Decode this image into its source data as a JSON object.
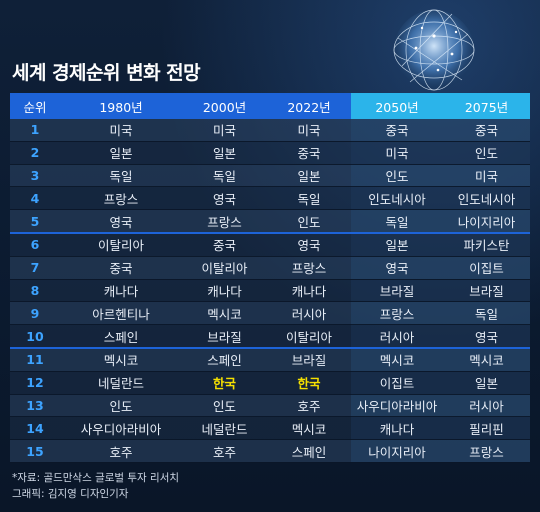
{
  "title": "세계 경제순위 변화 전망",
  "table": {
    "headers": [
      "순위",
      "1980년",
      "2000년",
      "2022년",
      "2050년",
      "2075년"
    ],
    "rows": [
      [
        "1",
        "미국",
        "미국",
        "미국",
        "중국",
        "중국"
      ],
      [
        "2",
        "일본",
        "일본",
        "중국",
        "미국",
        "인도"
      ],
      [
        "3",
        "독일",
        "독일",
        "일본",
        "인도",
        "미국"
      ],
      [
        "4",
        "프랑스",
        "영국",
        "독일",
        "인도네시아",
        "인도네시아"
      ],
      [
        "5",
        "영국",
        "프랑스",
        "인도",
        "독일",
        "나이지리아"
      ],
      [
        "6",
        "이탈리아",
        "중국",
        "영국",
        "일본",
        "파키스탄"
      ],
      [
        "7",
        "중국",
        "이탈리아",
        "프랑스",
        "영국",
        "이집트"
      ],
      [
        "8",
        "캐나다",
        "캐나다",
        "캐나다",
        "브라질",
        "브라질"
      ],
      [
        "9",
        "아르헨티나",
        "멕시코",
        "러시아",
        "프랑스",
        "독일"
      ],
      [
        "10",
        "스페인",
        "브라질",
        "이탈리아",
        "러시아",
        "영국"
      ],
      [
        "11",
        "멕시코",
        "스페인",
        "브라질",
        "멕시코",
        "멕시코"
      ],
      [
        "12",
        "네덜란드",
        "한국",
        "한국",
        "이집트",
        "일본"
      ],
      [
        "13",
        "인도",
        "인도",
        "호주",
        "사우디아라비아",
        "러시아"
      ],
      [
        "14",
        "사우디아라비아",
        "네덜란드",
        "멕시코",
        "캐나다",
        "필리핀"
      ],
      [
        "15",
        "호주",
        "호주",
        "스페인",
        "나이지리아",
        "프랑스"
      ]
    ],
    "highlight_color": "#f5e000"
  },
  "source": "*자료: 골드만삭스 글로벌 투자 리서치",
  "credit": "그래픽: 김지영 디자인기자",
  "colors": {
    "header_past": "#1d63d8",
    "header_future": "#2bb4ea",
    "rank": "#3da3ff"
  }
}
